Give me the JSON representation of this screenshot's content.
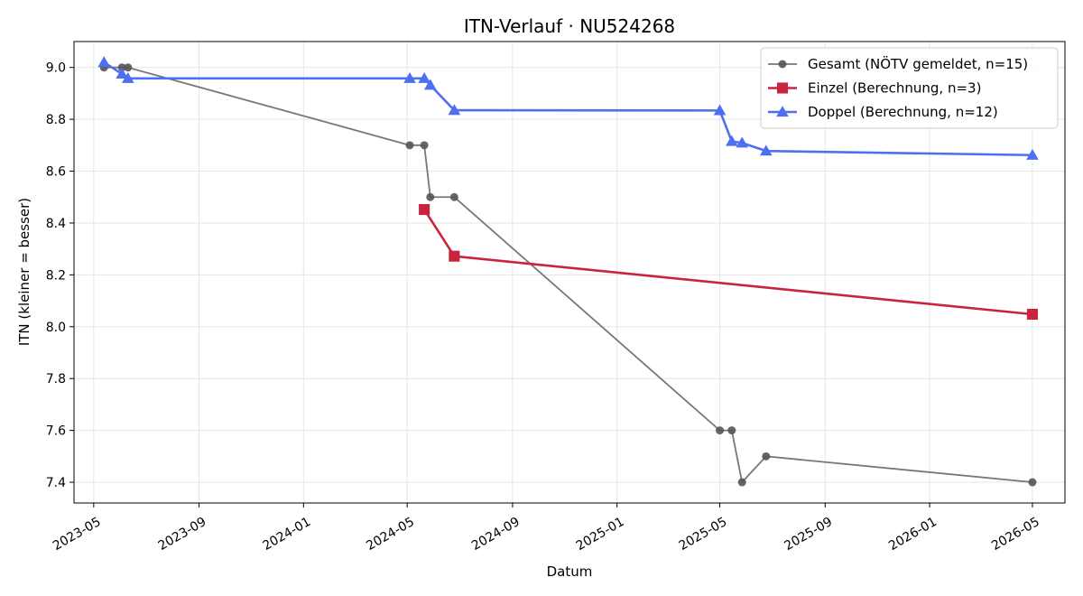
{
  "chart_data": {
    "type": "line",
    "title": "ITN-Verlauf · NU524268",
    "xlabel": "Datum",
    "ylabel": "ITN  (kleiner = besser)",
    "x_ticks": [
      "2023-05",
      "2023-09",
      "2024-01",
      "2024-05",
      "2024-09",
      "2025-01",
      "2025-05",
      "2025-09",
      "2026-01",
      "2026-05"
    ],
    "y_ticks": [
      "7.4",
      "7.6",
      "7.8",
      "8.0",
      "8.2",
      "8.4",
      "8.6",
      "8.8",
      "9.0"
    ],
    "xlim": [
      "2023-04-08",
      "2026-06-08"
    ],
    "ylim": [
      7.32,
      9.1
    ],
    "grid": true,
    "legend_position": "top-right",
    "series": [
      {
        "name": "Gesamt (NÖTV gemeldet, n=15)",
        "color": "#777777",
        "marker_color": "#555555",
        "marker": "circle",
        "points": [
          {
            "x": "2023-05-13",
            "y": 9.0
          },
          {
            "x": "2023-06-03",
            "y": 9.0
          },
          {
            "x": "2023-06-10",
            "y": 9.0
          },
          {
            "x": "2024-05-04",
            "y": 8.7
          },
          {
            "x": "2024-05-21",
            "y": 8.7
          },
          {
            "x": "2024-05-28",
            "y": 8.5
          },
          {
            "x": "2024-06-25",
            "y": 8.5
          },
          {
            "x": "2025-05-01",
            "y": 7.6
          },
          {
            "x": "2025-05-15",
            "y": 7.6
          },
          {
            "x": "2025-05-27",
            "y": 7.4
          },
          {
            "x": "2025-06-24",
            "y": 7.5
          },
          {
            "x": "2026-05-01",
            "y": 7.4
          }
        ]
      },
      {
        "name": "Einzel (Berechnung, n=3)",
        "color": "#c8243f",
        "marker_color": "#c8243f",
        "marker": "square",
        "points": [
          {
            "x": "2024-05-21",
            "y": 8.452
          },
          {
            "x": "2024-06-25",
            "y": 8.272
          },
          {
            "x": "2026-05-01",
            "y": 8.048
          }
        ]
      },
      {
        "name": "Doppel (Berechnung, n=12)",
        "color": "#4f6ff0",
        "marker_color": "#4f6ff0",
        "marker": "triangle",
        "points": [
          {
            "x": "2023-05-13",
            "y": 9.02
          },
          {
            "x": "2023-06-03",
            "y": 8.975
          },
          {
            "x": "2023-06-10",
            "y": 8.958
          },
          {
            "x": "2024-05-04",
            "y": 8.958
          },
          {
            "x": "2024-05-21",
            "y": 8.958
          },
          {
            "x": "2024-05-28",
            "y": 8.932
          },
          {
            "x": "2024-06-25",
            "y": 8.835
          },
          {
            "x": "2025-05-01",
            "y": 8.834
          },
          {
            "x": "2025-05-15",
            "y": 8.715
          },
          {
            "x": "2025-05-27",
            "y": 8.709
          },
          {
            "x": "2025-06-24",
            "y": 8.678
          },
          {
            "x": "2026-05-01",
            "y": 8.662
          }
        ]
      }
    ]
  }
}
